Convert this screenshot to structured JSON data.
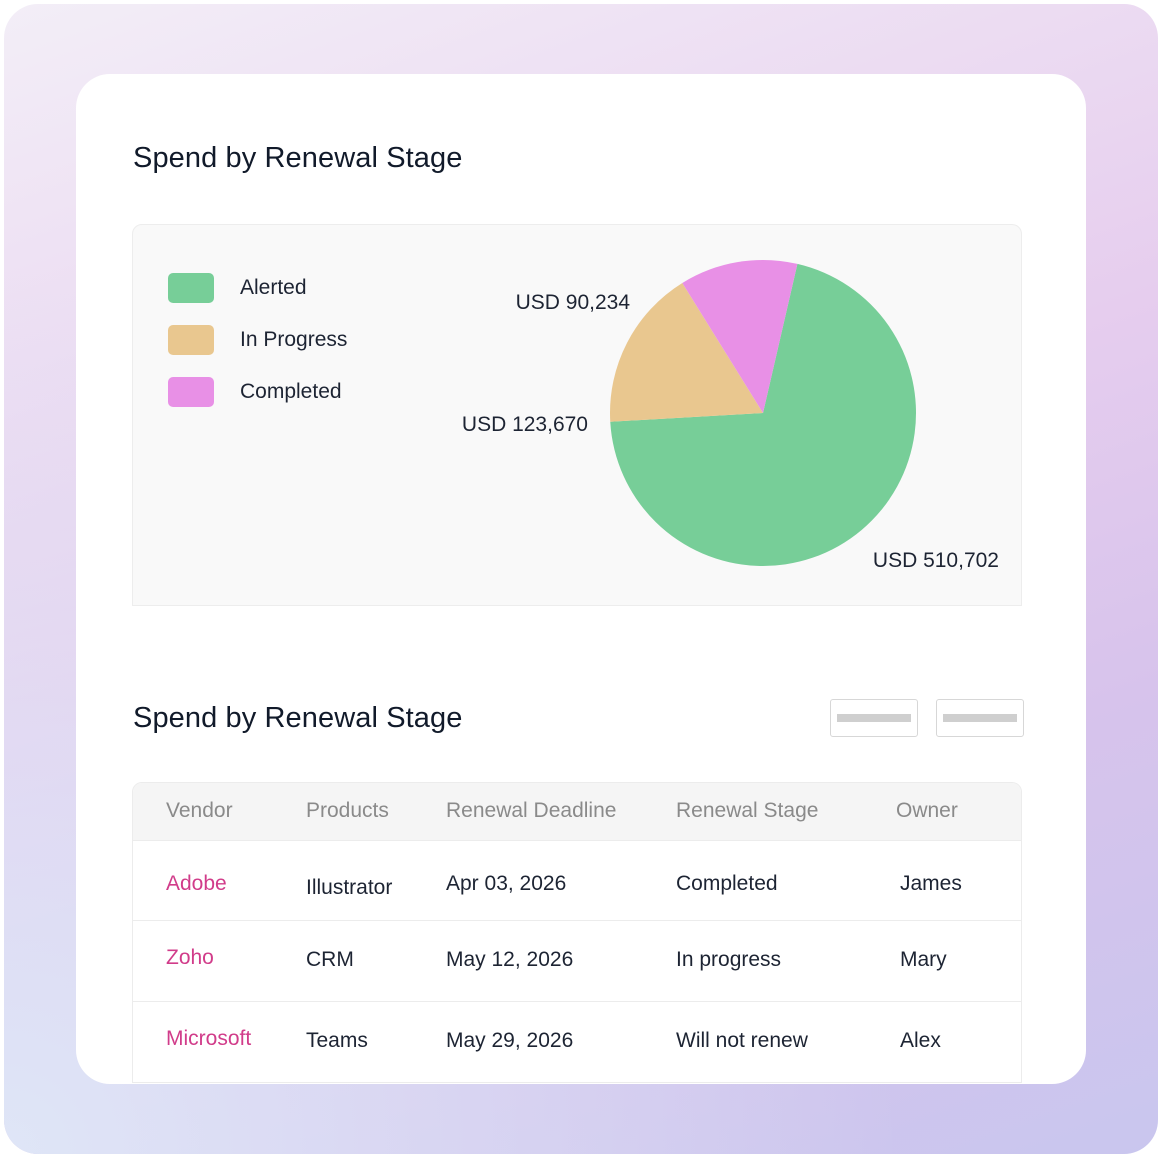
{
  "chart_section": {
    "title": "Spend by Renewal Stage"
  },
  "table_section": {
    "title": "Spend by Renewal Stage"
  },
  "chart_data": {
    "type": "pie",
    "title": "Spend by Renewal Stage",
    "currency": "USD",
    "slices": [
      {
        "name": "Alerted",
        "value": 510702,
        "label": "USD 510,702",
        "color": "#77ce98"
      },
      {
        "name": "In Progress",
        "value": 123670,
        "label": "USD 123,670",
        "color": "#e9c78f"
      },
      {
        "name": "Completed",
        "value": 90234,
        "label": "USD 90,234",
        "color": "#e890e6"
      }
    ],
    "legend": [
      "Alerted",
      "In Progress",
      "Completed"
    ],
    "legend_position": "top-left"
  },
  "table": {
    "headers": [
      "Vendor",
      "Products",
      "Renewal Deadline",
      "Renewal Stage",
      "Owner"
    ],
    "rows": [
      {
        "vendor": "Adobe",
        "product": "Illustrator",
        "deadline": "Apr 03, 2026",
        "stage": "Completed",
        "owner": "James"
      },
      {
        "vendor": "Zoho",
        "product": "CRM",
        "deadline": "May 12, 2026",
        "stage": "In progress",
        "owner": "Mary"
      },
      {
        "vendor": "Microsoft",
        "product": "Teams",
        "deadline": "May 29, 2026",
        "stage": "Will not renew",
        "owner": "Alex"
      }
    ]
  },
  "colors": {
    "vendor_link": "#d13c8a",
    "heading": "#111a2a"
  }
}
